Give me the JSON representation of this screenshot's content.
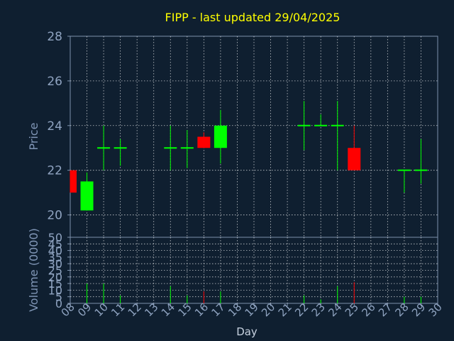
{
  "chart_data": {
    "type": "candlestick",
    "title": "FIPP - last updated 29/04/2025",
    "xlabel": "Day",
    "ylabel_price": "Price",
    "ylabel_volume": "Volume (0000)",
    "x_ticks": [
      "08",
      "09",
      "10",
      "11",
      "12",
      "13",
      "14",
      "15",
      "16",
      "17",
      "18",
      "19",
      "20",
      "21",
      "22",
      "23",
      "24",
      "25",
      "26",
      "27",
      "28",
      "29",
      "30"
    ],
    "price_ylim": [
      19,
      28
    ],
    "price_ticks": [
      "20",
      "22",
      "24",
      "26",
      "28"
    ],
    "volume_ylim": [
      0,
      50
    ],
    "volume_ticks": [
      "0",
      "5",
      "10",
      "15",
      "20",
      "25",
      "30",
      "35",
      "40",
      "45",
      "50"
    ],
    "grid": true,
    "colors": {
      "up": "#00ff00",
      "down": "#ff0000",
      "background": "#0f1f30",
      "title": "#ffff00"
    },
    "candles": [
      {
        "day": "08",
        "open": 22.0,
        "high": 22.0,
        "low": 21.0,
        "close": 21.0,
        "volume": 0
      },
      {
        "day": "09",
        "open": 20.2,
        "high": 21.9,
        "low": 20.2,
        "close": 21.5,
        "volume": 15
      },
      {
        "day": "10",
        "open": 23.0,
        "high": 24.0,
        "low": 22.0,
        "close": 23.0,
        "volume": 15
      },
      {
        "day": "11",
        "open": 23.0,
        "high": 23.4,
        "low": 22.2,
        "close": 23.0,
        "volume": 6
      },
      {
        "day": "14",
        "open": 23.0,
        "high": 24.0,
        "low": 22.0,
        "close": 23.0,
        "volume": 13
      },
      {
        "day": "15",
        "open": 23.0,
        "high": 23.8,
        "low": 22.1,
        "close": 23.0,
        "volume": 6
      },
      {
        "day": "16",
        "open": 23.5,
        "high": 23.7,
        "low": 23.0,
        "close": 23.0,
        "volume": 9
      },
      {
        "day": "17",
        "open": 23.0,
        "high": 24.7,
        "low": 22.3,
        "close": 24.0,
        "volume": 9
      },
      {
        "day": "22",
        "open": 24.0,
        "high": 25.1,
        "low": 22.9,
        "close": 24.0,
        "volume": 6
      },
      {
        "day": "23",
        "open": 24.0,
        "high": 24.5,
        "low": 24.0,
        "close": 24.0,
        "volume": 3
      },
      {
        "day": "24",
        "open": 24.0,
        "high": 25.1,
        "low": 22.0,
        "close": 24.0,
        "volume": 13
      },
      {
        "day": "25",
        "open": 23.0,
        "high": 24.0,
        "low": 22.0,
        "close": 22.0,
        "volume": 16
      },
      {
        "day": "28",
        "open": 22.0,
        "high": 22.0,
        "low": 21.0,
        "close": 22.0,
        "volume": 5
      },
      {
        "day": "29",
        "open": 22.0,
        "high": 23.4,
        "low": 21.4,
        "close": 22.0,
        "volume": 5
      }
    ]
  }
}
